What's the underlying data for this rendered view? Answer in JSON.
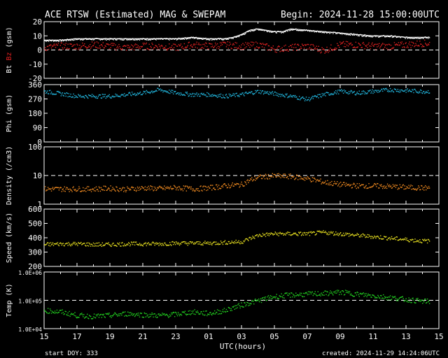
{
  "header": {
    "title": "ACE RTSW (Estimated) MAG & SWEPAM",
    "begin": "Begin: 2024-11-28 15:00:00UTC"
  },
  "footer": {
    "xlabel": "UTC(hours)",
    "start_doy": "start DOY: 333",
    "created": "created: 2024-11-29 14:24:06UTC"
  },
  "x_ticks": [
    "15",
    "17",
    "19",
    "21",
    "23",
    "01",
    "03",
    "05",
    "07",
    "09",
    "11",
    "13",
    "15"
  ],
  "colors": {
    "bt": "#ffffff",
    "bz": "#e02020",
    "phi": "#22b8e0",
    "density": "#f08a20",
    "speed": "#e8e020",
    "temp": "#22d020"
  },
  "chart_data": [
    {
      "type": "scatter",
      "panel": "mag",
      "ylabel_parts": [
        "Bt",
        "Bz",
        "(gsm)"
      ],
      "yticks": [
        "20",
        "10",
        "0",
        "-10",
        "-20"
      ],
      "ylim": [
        -20,
        20
      ],
      "x_hours_range": [
        0,
        24
      ],
      "series": [
        {
          "name": "Bt",
          "color_key": "bt",
          "x": [
            0,
            1,
            2,
            3,
            4,
            5,
            6,
            7,
            8,
            9,
            10,
            11,
            11.5,
            12,
            12.5,
            13,
            13.5,
            14,
            14.5,
            15,
            16,
            17,
            18,
            19,
            20,
            21,
            22,
            23
          ],
          "y": [
            7,
            7,
            8,
            8,
            8,
            8,
            8,
            8,
            8,
            9,
            8,
            8,
            9,
            11,
            14,
            15,
            14,
            13,
            13,
            15,
            14,
            13,
            12,
            11,
            10,
            10,
            9,
            9
          ]
        },
        {
          "name": "Bz",
          "color_key": "bz",
          "x": [
            0,
            1,
            2,
            3,
            4,
            5,
            6,
            7,
            8,
            9,
            10,
            11,
            12,
            13,
            14,
            15,
            16,
            17,
            18,
            19,
            20,
            21,
            22,
            23
          ],
          "y": [
            2,
            3,
            3,
            4,
            3,
            2,
            3,
            3,
            2,
            4,
            3,
            4,
            3,
            4,
            1,
            2,
            3,
            0,
            4,
            4,
            3,
            3,
            4,
            5
          ]
        }
      ]
    },
    {
      "type": "scatter",
      "panel": "phi",
      "ylabel": "Phi (gsm)",
      "yticks": [
        "360",
        "270",
        "180",
        "90",
        "0"
      ],
      "ylim": [
        0,
        360
      ],
      "series": [
        {
          "name": "Phi",
          "color_key": "phi",
          "x": [
            0,
            1,
            2,
            3,
            4,
            5,
            6,
            7,
            8,
            9,
            10,
            11,
            12,
            13,
            14,
            15,
            16,
            17,
            18,
            19,
            20,
            21,
            22,
            23
          ],
          "y": [
            320,
            305,
            290,
            290,
            290,
            300,
            310,
            330,
            310,
            300,
            300,
            290,
            300,
            320,
            305,
            290,
            270,
            300,
            320,
            310,
            320,
            330,
            325,
            320
          ]
        }
      ]
    },
    {
      "type": "scatter",
      "panel": "density",
      "ylabel": "Density (/cm3)",
      "yticks": [
        "100",
        "10",
        "1"
      ],
      "ylim": [
        1,
        100
      ],
      "log": true,
      "series": [
        {
          "name": "Density",
          "color_key": "density",
          "x": [
            0,
            1,
            2,
            3,
            4,
            5,
            6,
            7,
            8,
            9,
            10,
            11,
            12,
            13,
            14,
            15,
            16,
            17,
            18,
            19,
            20,
            21,
            22,
            23
          ],
          "y": [
            3.5,
            3.5,
            3.5,
            3.5,
            3.7,
            3.4,
            3.8,
            3.6,
            3.9,
            3.5,
            3.8,
            4.5,
            5,
            9,
            10,
            9.5,
            8,
            6,
            5,
            4.5,
            4.5,
            4.3,
            4,
            3.8
          ]
        }
      ]
    },
    {
      "type": "scatter",
      "panel": "speed",
      "ylabel": "Speed (km/s)",
      "yticks": [
        "600",
        "500",
        "400",
        "300",
        "200"
      ],
      "ylim": [
        200,
        600
      ],
      "series": [
        {
          "name": "Speed",
          "color_key": "speed",
          "x": [
            0,
            1,
            2,
            3,
            4,
            5,
            6,
            7,
            8,
            9,
            10,
            11,
            12,
            13,
            14,
            15,
            16,
            17,
            18,
            19,
            20,
            21,
            22,
            23
          ],
          "y": [
            355,
            360,
            360,
            355,
            355,
            360,
            360,
            360,
            365,
            365,
            365,
            370,
            375,
            420,
            430,
            430,
            430,
            440,
            430,
            420,
            410,
            400,
            390,
            380
          ]
        }
      ]
    },
    {
      "type": "scatter",
      "panel": "temp",
      "ylabel": "Temp (K)",
      "yticks": [
        "1.0E+06",
        "1.0E+05",
        "1.0E+04"
      ],
      "ylim": [
        10000,
        1000000
      ],
      "log": true,
      "series": [
        {
          "name": "Temp",
          "color_key": "temp",
          "x": [
            0,
            1,
            2,
            3,
            4,
            5,
            6,
            7,
            8,
            9,
            10,
            11,
            12,
            13,
            14,
            15,
            16,
            17,
            18,
            19,
            20,
            21,
            22,
            23
          ],
          "y": [
            45000,
            40000,
            30000,
            28000,
            30000,
            35000,
            32000,
            30000,
            33000,
            40000,
            35000,
            45000,
            70000,
            100000,
            140000,
            160000,
            170000,
            180000,
            200000,
            170000,
            150000,
            130000,
            110000,
            95000
          ]
        }
      ]
    }
  ]
}
